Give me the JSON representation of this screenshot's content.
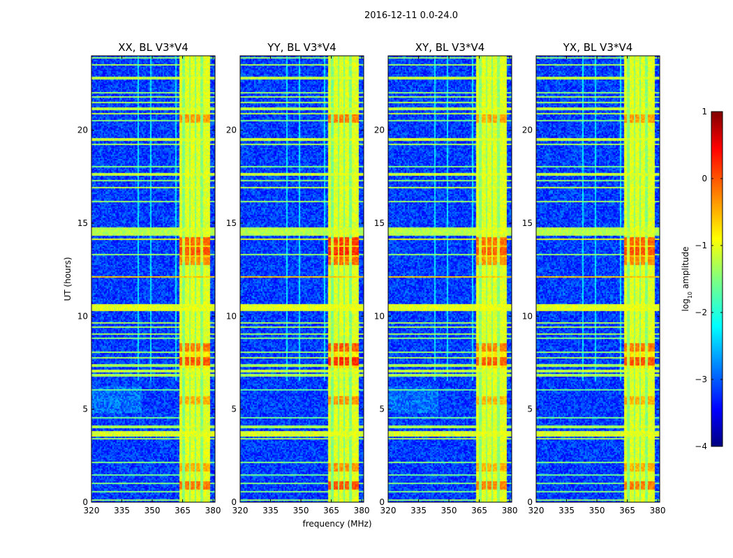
{
  "chart_data": {
    "type": "heatmap",
    "suptitle": "2016-12-11 0.0-24.0",
    "xlabel": "frequency (MHz)",
    "ylabel": "UT (hours)",
    "xlim": [
      320,
      381
    ],
    "ylim": [
      0,
      24
    ],
    "xticks": [
      320,
      335,
      350,
      365,
      380
    ],
    "yticks": [
      0,
      5,
      10,
      15,
      20
    ],
    "panels": [
      {
        "title": "XX, BL V3*V4",
        "intensity": 1.0
      },
      {
        "title": "YY, BL V3*V4",
        "intensity": 1.08
      },
      {
        "title": "XY, BL V3*V4",
        "intensity": 0.95
      },
      {
        "title": "YX, BL V3*V4",
        "intensity": 1.0
      }
    ],
    "rfi_band_mhz": [
      363.5,
      378.5
    ],
    "rfi_channels_mhz": [
      364,
      367,
      370,
      373,
      376,
      378.5
    ],
    "rfi_time_bands_hours": [
      [
        0.05,
        0.12,
        -1.4
      ],
      [
        0.55,
        0.6,
        -1.5
      ],
      [
        1.0,
        1.05,
        -1.5
      ],
      [
        1.45,
        1.5,
        -1.6
      ],
      [
        2.1,
        2.15,
        -1.5
      ],
      [
        3.35,
        3.45,
        -1.3
      ],
      [
        3.55,
        3.85,
        -1.1
      ],
      [
        3.95,
        4.1,
        -1.3
      ],
      [
        4.5,
        4.55,
        -1.6
      ],
      [
        5.0,
        5.05,
        -1.6
      ],
      [
        6.0,
        6.05,
        -1.6
      ],
      [
        6.75,
        6.9,
        -1.3
      ],
      [
        7.0,
        7.1,
        -1.2
      ],
      [
        7.3,
        7.4,
        -1.3
      ],
      [
        7.7,
        7.8,
        -1.3
      ],
      [
        8.0,
        8.1,
        -1.4
      ],
      [
        8.45,
        8.5,
        -1.4
      ],
      [
        8.8,
        8.85,
        -1.5
      ],
      [
        9.0,
        9.1,
        -1.3
      ],
      [
        9.35,
        9.45,
        -1.3
      ],
      [
        9.6,
        9.7,
        -1.3
      ],
      [
        10.3,
        10.65,
        -1.05
      ],
      [
        10.85,
        10.9,
        -1.4
      ],
      [
        11.15,
        11.2,
        -1.5
      ],
      [
        12.1,
        12.15,
        -0.6
      ],
      [
        13.1,
        13.15,
        -1.4
      ],
      [
        13.3,
        13.35,
        -1.4
      ],
      [
        13.55,
        13.6,
        -1.4
      ],
      [
        14.1,
        14.2,
        -1.0
      ],
      [
        14.3,
        14.75,
        -1.25
      ],
      [
        15.5,
        15.55,
        -1.5
      ],
      [
        15.8,
        15.85,
        -1.5
      ],
      [
        16.15,
        16.2,
        -1.4
      ],
      [
        16.55,
        16.6,
        -1.4
      ],
      [
        16.85,
        16.95,
        -1.2
      ],
      [
        17.25,
        17.3,
        -1.4
      ],
      [
        17.55,
        17.7,
        -1.15
      ],
      [
        18.0,
        18.05,
        -1.5
      ],
      [
        18.35,
        18.4,
        -1.5
      ],
      [
        19.2,
        19.3,
        -1.3
      ],
      [
        19.45,
        19.6,
        -1.15
      ],
      [
        20.0,
        20.05,
        -1.4
      ],
      [
        20.5,
        20.55,
        -1.5
      ],
      [
        20.85,
        20.95,
        -1.2
      ],
      [
        21.1,
        21.25,
        -1.2
      ],
      [
        21.45,
        21.5,
        -1.3
      ],
      [
        21.75,
        21.85,
        -1.3
      ],
      [
        22.0,
        22.05,
        -1.4
      ],
      [
        22.75,
        22.85,
        -1.2
      ],
      [
        23.0,
        23.05,
        -1.4
      ],
      [
        23.5,
        23.55,
        -1.3
      ],
      [
        23.85,
        23.9,
        -1.4
      ]
    ],
    "hot_spots": [
      [
        13.5,
        0.2
      ],
      [
        14.0,
        0.1
      ],
      [
        7.6,
        0.2
      ],
      [
        8.3,
        0.0
      ],
      [
        0.9,
        0.0
      ],
      [
        5.5,
        -0.3
      ],
      [
        20.6,
        -0.2
      ],
      [
        1.9,
        -0.3
      ],
      [
        13.0,
        -0.1
      ]
    ],
    "colorbar": {
      "label_main": "log",
      "label_sub": "10",
      "label_tail": " amplitude",
      "range": [
        -4,
        1
      ],
      "ticks": [
        1,
        0,
        -1,
        -2,
        -3,
        -4
      ],
      "tick_labels": [
        "1",
        "0",
        "−1",
        "−2",
        "−3",
        "−4"
      ],
      "colormap": "jet",
      "colormap_hex": [
        "#000080",
        "#0000ff",
        "#00ffff",
        "#80ff80",
        "#ffff00",
        "#ff0000",
        "#800000"
      ]
    }
  }
}
